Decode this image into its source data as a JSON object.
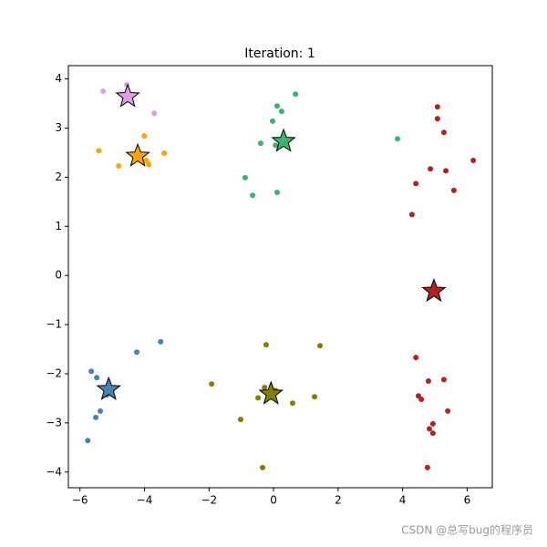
{
  "chart_data": {
    "type": "scatter",
    "title": "Iteration: 1",
    "watermark": "CSDN @总写bug的程序员",
    "xlim": [
      -6.36,
      6.78
    ],
    "ylim": [
      -4.32,
      4.27
    ],
    "xticks": [
      {
        "value": -6,
        "label": "−6"
      },
      {
        "value": -4,
        "label": "−4"
      },
      {
        "value": -2,
        "label": "−2"
      },
      0,
      2,
      4,
      6
    ],
    "yticks": [
      {
        "value": -4,
        "label": "−4"
      },
      {
        "value": -3,
        "label": "−3"
      },
      {
        "value": -2,
        "label": "−2"
      },
      {
        "value": -1,
        "label": "−1"
      },
      0,
      1,
      2,
      3,
      4
    ],
    "series": [
      {
        "color": "#dda0dd",
        "x": [
          -5.28,
          -4.55,
          -3.7
        ],
        "y": [
          3.75,
          3.88,
          3.3
        ],
        "centroid": [
          -4.52,
          3.64
        ]
      },
      {
        "color": "#ffa500",
        "x": [
          -5.42,
          -4.8,
          -4.01,
          -3.95,
          -3.87,
          -3.39
        ],
        "y": [
          2.54,
          2.23,
          2.84,
          2.34,
          2.26,
          2.49
        ],
        "centroid": [
          -4.21,
          2.43
        ]
      },
      {
        "color": "#3cb371",
        "x": [
          0.68,
          0.11,
          0.25,
          -0.03,
          -0.4,
          0.06,
          3.84,
          -0.88,
          -0.65,
          0.11
        ],
        "y": [
          3.69,
          3.45,
          3.34,
          3.14,
          2.69,
          2.65,
          2.78,
          1.99,
          1.63,
          1.69
        ],
        "centroid": [
          0.31,
          2.73
        ]
      },
      {
        "color": "#b22222",
        "x": [
          5.08,
          5.08,
          5.28,
          4.86,
          5.34,
          6.19,
          4.41,
          5.59,
          4.29,
          4.41,
          5.28,
          4.8,
          4.49,
          4.58,
          5.4,
          4.94,
          4.83,
          4.94,
          4.77
        ],
        "y": [
          3.43,
          3.19,
          2.91,
          2.17,
          2.13,
          2.34,
          1.87,
          1.73,
          1.24,
          -1.67,
          -2.12,
          -2.15,
          -2.45,
          -2.52,
          -2.76,
          -3.02,
          -3.12,
          -3.21,
          -3.91
        ],
        "centroid": [
          4.97,
          -0.32
        ]
      },
      {
        "color": "#4682b4",
        "x": [
          -3.5,
          -4.24,
          -5.65,
          -5.48,
          -5.17,
          -5.37,
          -5.51,
          -5.76
        ],
        "y": [
          -1.35,
          -1.56,
          -1.95,
          -2.08,
          -2.43,
          -2.76,
          -2.89,
          -3.36
        ],
        "centroid": [
          -5.11,
          -2.32
        ]
      },
      {
        "color": "#808000",
        "x": [
          -0.23,
          1.44,
          -1.92,
          -0.28,
          -0.48,
          1.27,
          0.59,
          -1.02,
          -0.34,
          0.06
        ],
        "y": [
          -1.41,
          -1.43,
          -2.21,
          -2.28,
          -2.49,
          -2.47,
          -2.6,
          -2.93,
          -3.91,
          -2.34
        ],
        "centroid": [
          -0.08,
          -2.41
        ]
      }
    ]
  }
}
